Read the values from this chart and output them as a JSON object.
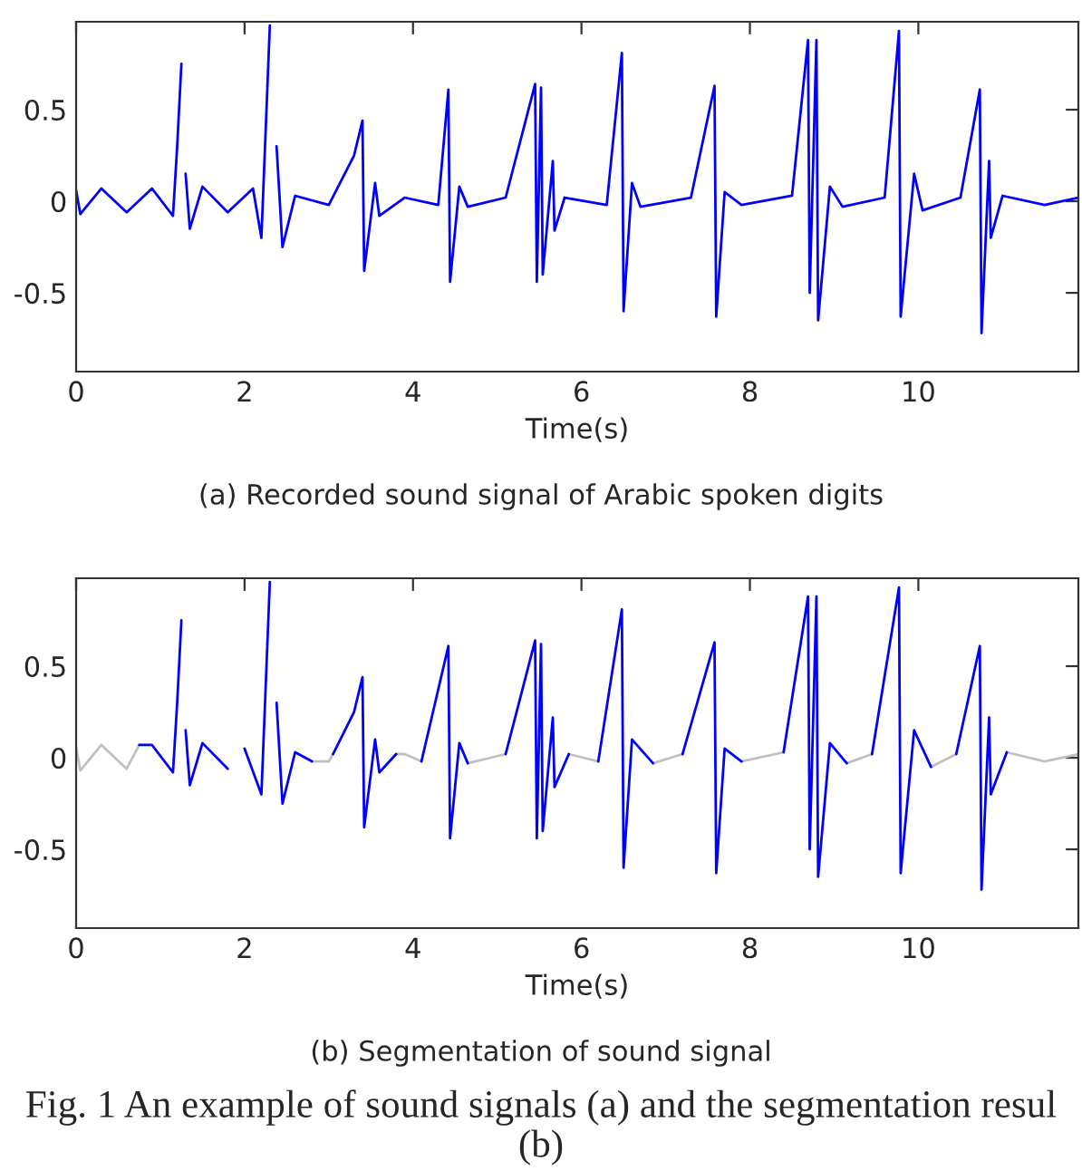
{
  "chart_data": [
    {
      "type": "line",
      "xlabel": "Time(s)",
      "annotations": [
        "(a) Recorded sound signal of Arabic spoken digits"
      ],
      "xlim": [
        0,
        11.9
      ],
      "ylim": [
        -0.93,
        0.98
      ],
      "xticks": [
        0,
        2,
        4,
        6,
        8,
        10
      ],
      "yticks": [
        -0.5,
        0,
        0.5
      ],
      "series": [
        {
          "color": "#0000ff",
          "x": [
            0,
            0.05,
            0.3,
            0.6,
            0.9,
            1.15,
            1.2,
            1.25,
            1.26,
            1.3,
            1.35,
            1.5,
            1.8,
            2.1,
            2.2,
            2.3,
            2.34,
            2.38,
            2.45,
            2.6,
            3.0,
            3.3,
            3.4,
            3.42,
            3.55,
            3.6,
            3.9,
            4.3,
            4.42,
            4.44,
            4.55,
            4.65,
            5.1,
            5.45,
            5.47,
            5.52,
            5.54,
            5.66,
            5.68,
            5.8,
            6.3,
            6.48,
            6.5,
            6.6,
            6.7,
            7.3,
            7.58,
            7.6,
            7.7,
            7.9,
            8.5,
            8.69,
            8.71,
            8.79,
            8.81,
            8.95,
            9.1,
            9.6,
            9.77,
            9.79,
            9.95,
            10.05,
            10.5,
            10.73,
            10.75,
            10.84,
            10.86,
            11.0,
            11.5,
            11.9
          ],
          "values": [
            0.06,
            -0.07,
            0.07,
            -0.06,
            0.07,
            -0.08,
            0.3,
            0.75,
            null,
            0.15,
            -0.15,
            0.08,
            -0.06,
            0.07,
            -0.2,
            0.96,
            null,
            0.3,
            -0.25,
            0.03,
            -0.02,
            0.25,
            0.44,
            -0.38,
            0.1,
            -0.08,
            0.02,
            -0.02,
            0.61,
            -0.44,
            0.08,
            -0.03,
            0.02,
            0.64,
            -0.44,
            0.62,
            -0.4,
            0.22,
            -0.16,
            0.02,
            -0.02,
            0.81,
            -0.6,
            0.1,
            -0.03,
            0.02,
            0.63,
            -0.63,
            0.05,
            -0.02,
            0.03,
            0.88,
            -0.5,
            0.88,
            -0.65,
            0.08,
            -0.03,
            0.02,
            0.93,
            -0.63,
            0.15,
            -0.05,
            0.02,
            0.61,
            -0.72,
            0.22,
            -0.2,
            0.03,
            -0.02,
            0.02
          ]
        }
      ]
    },
    {
      "type": "line",
      "xlabel": "Time(s)",
      "annotations": [
        "(b) Segmentation of sound signal",
        "Fig. 1 An example of sound signals (a) and the segmentation resul",
        "(b)"
      ],
      "xlim": [
        0,
        11.9
      ],
      "ylim": [
        -0.93,
        0.98
      ],
      "xticks": [
        0,
        2,
        4,
        6,
        8,
        10
      ],
      "yticks": [
        -0.5,
        0,
        0.5
      ],
      "series": [
        {
          "color": "#c0c0c0",
          "x": [
            0,
            0.05,
            0.3,
            0.6,
            0.75,
            0.76,
            2.8,
            3.0,
            3.05,
            3.06,
            3.8,
            3.9,
            4.1,
            4.11,
            4.65,
            5.1,
            5.11,
            5.85,
            6.2,
            6.21,
            6.85,
            7.2,
            7.21,
            7.9,
            8.4,
            8.41,
            9.15,
            9.45,
            9.46,
            10.15,
            10.45,
            10.46,
            11.05,
            11.5,
            11.9
          ],
          "values": [
            0.06,
            -0.07,
            0.07,
            -0.06,
            0.07,
            null,
            -0.02,
            -0.02,
            0.02,
            null,
            0.02,
            0.02,
            -0.02,
            null,
            -0.03,
            0.02,
            null,
            0.02,
            -0.02,
            null,
            -0.03,
            0.02,
            null,
            -0.02,
            0.03,
            null,
            -0.03,
            0.02,
            null,
            -0.05,
            0.02,
            null,
            0.03,
            -0.02,
            0.02
          ]
        },
        {
          "color": "#0000ff",
          "x": [
            0.75,
            0.9,
            1.15,
            1.2,
            1.25,
            1.26,
            1.3,
            1.35,
            1.5,
            1.8,
            1.92,
            2.0,
            2.2,
            2.3,
            2.34,
            2.38,
            2.45,
            2.6,
            2.8,
            2.9,
            3.05,
            3.3,
            3.4,
            3.42,
            3.55,
            3.6,
            3.8,
            3.9,
            4.1,
            4.42,
            4.44,
            4.55,
            4.65,
            4.8,
            5.1,
            5.45,
            5.47,
            5.52,
            5.54,
            5.66,
            5.68,
            5.85,
            6.0,
            6.2,
            6.48,
            6.5,
            6.6,
            6.85,
            7.0,
            7.2,
            7.58,
            7.6,
            7.7,
            7.9,
            8.1,
            8.4,
            8.69,
            8.71,
            8.79,
            8.81,
            8.95,
            9.15,
            9.3,
            9.45,
            9.77,
            9.79,
            9.95,
            10.15,
            10.3,
            10.45,
            10.73,
            10.75,
            10.84,
            10.86,
            11.05
          ],
          "values": [
            0.07,
            0.07,
            -0.08,
            0.3,
            0.75,
            null,
            0.15,
            -0.15,
            0.08,
            -0.06,
            null,
            0.05,
            -0.2,
            0.96,
            null,
            0.3,
            -0.25,
            0.03,
            -0.02,
            null,
            0.02,
            0.25,
            0.44,
            -0.38,
            0.1,
            -0.08,
            0.02,
            null,
            -0.02,
            0.61,
            -0.44,
            0.08,
            -0.03,
            null,
            0.02,
            0.64,
            -0.44,
            0.62,
            -0.4,
            0.22,
            -0.16,
            0.02,
            null,
            -0.02,
            0.81,
            -0.6,
            0.1,
            -0.03,
            null,
            0.02,
            0.63,
            -0.63,
            0.05,
            -0.02,
            null,
            0.03,
            0.88,
            -0.5,
            0.88,
            -0.65,
            0.08,
            -0.03,
            null,
            0.02,
            0.93,
            -0.63,
            0.15,
            -0.05,
            null,
            0.02,
            0.61,
            -0.72,
            0.22,
            -0.2,
            0.03
          ]
        }
      ]
    }
  ]
}
